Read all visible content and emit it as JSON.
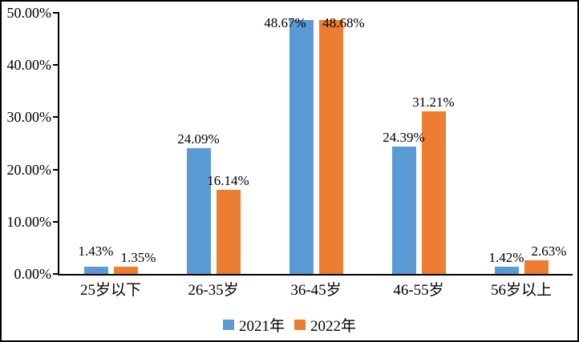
{
  "chart_data": {
    "type": "bar",
    "title": "",
    "categories": [
      "25岁以下",
      "26-35岁",
      "36-45岁",
      "46-55岁",
      "56岁以上"
    ],
    "series": [
      {
        "name": "2021年",
        "color": "#5B9BD5",
        "values": [
          1.43,
          24.09,
          48.67,
          24.39,
          1.42
        ],
        "labels": [
          "1.43%",
          "24.09%",
          "48.67%",
          "24.39%",
          "1.42%"
        ]
      },
      {
        "name": "2022年",
        "color": "#ED7D31",
        "values": [
          1.35,
          16.14,
          48.68,
          31.21,
          2.63
        ],
        "labels": [
          "1.35%",
          "16.14%",
          "48.68%",
          "31.21%",
          "2.63%"
        ]
      }
    ],
    "y_ticks": [
      "0.00%",
      "10.00%",
      "20.00%",
      "30.00%",
      "40.00%",
      "50.00%"
    ],
    "ylim": [
      0,
      50
    ],
    "xlabel": "",
    "ylabel": "",
    "grid": false,
    "legend_position": "bottom",
    "axis_color": "#000000",
    "text_color": "#000000",
    "background_color": "#FFFFFF"
  }
}
